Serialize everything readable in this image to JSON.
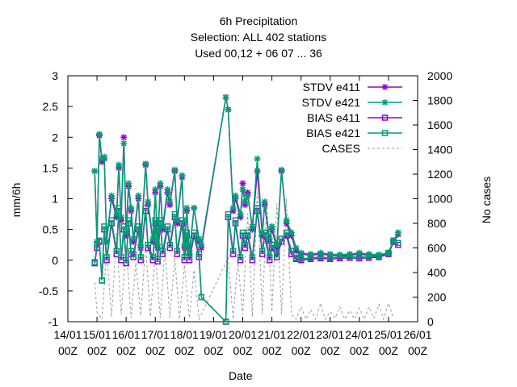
{
  "chart_data": {
    "type": "line",
    "title_lines": [
      "6h Precipitation",
      "Selection: ALL     402 stations",
      "Used  00,12  + 06 07 ... 36"
    ],
    "xlabel": "Date",
    "ylabel": "mm/6h",
    "y2label": "No cases",
    "ylim": [
      -1,
      3
    ],
    "y2lim": [
      0,
      2000
    ],
    "yticks": [
      -1,
      -0.5,
      0,
      0.5,
      1,
      1.5,
      2,
      2.5,
      3
    ],
    "ytick_labels": [
      "-1",
      "-0.5",
      "0",
      "0.5",
      "1",
      "1.5",
      "2",
      "2.5",
      "3"
    ],
    "y2ticks": [
      0,
      200,
      400,
      600,
      800,
      1000,
      1200,
      1400,
      1600,
      1800,
      2000
    ],
    "y2tick_labels": [
      "0",
      "200",
      "400",
      "600",
      "800",
      "1000",
      "1200",
      "1400",
      "1600",
      "1800",
      "2000"
    ],
    "xlim": [
      14,
      26
    ],
    "xticks": [
      14,
      15,
      16,
      17,
      18,
      19,
      20,
      21,
      22,
      23,
      24,
      25,
      26
    ],
    "xtick_labels": [
      [
        "14/01",
        "00Z"
      ],
      [
        "15/01",
        "00Z"
      ],
      [
        "16/01",
        "00Z"
      ],
      [
        "17/01",
        "00Z"
      ],
      [
        "18/01",
        "00Z"
      ],
      [
        "19/01",
        "00Z"
      ],
      [
        "20/01",
        "00Z"
      ],
      [
        "21/01",
        "00Z"
      ],
      [
        "22/01",
        "00Z"
      ],
      [
        "23/01",
        "00Z"
      ],
      [
        "24/01",
        "00Z"
      ],
      [
        "25/01",
        "00Z"
      ],
      [
        "26/01",
        "00Z"
      ]
    ],
    "legend_position": "top-right",
    "series": [
      {
        "name": "STDV e411",
        "color": "#9400d3",
        "marker": "cross",
        "axis": "y1",
        "x": [
          14.92,
          15.0,
          15.08,
          15.17,
          15.25,
          15.33,
          15.5,
          15.67,
          15.75,
          15.83,
          15.92,
          16.0,
          16.08,
          16.17,
          16.25,
          16.42,
          16.5,
          16.67,
          16.75,
          16.92,
          17.0,
          17.08,
          17.17,
          17.25,
          17.42,
          17.5,
          17.67,
          17.75,
          17.92,
          18.0,
          18.08,
          18.17,
          18.33,
          18.5,
          18.58,
          19.42,
          19.5,
          19.67,
          19.75,
          19.92,
          20.0,
          20.08,
          20.17,
          20.33,
          20.5,
          20.67,
          20.75,
          20.92,
          21.0,
          21.17,
          21.33,
          21.5,
          21.67,
          21.83,
          22.0,
          22.33,
          22.67,
          23.0,
          23.33,
          23.67,
          24.0,
          24.33,
          24.67,
          25.0,
          25.17,
          25.33
        ],
        "y": [
          1.45,
          0.3,
          2.03,
          1.6,
          1.65,
          0.3,
          1.0,
          0.7,
          1.5,
          0.65,
          2.0,
          0.4,
          1.2,
          0.8,
          0.3,
          1.0,
          0.2,
          1.55,
          0.9,
          0.3,
          1.1,
          0.2,
          1.2,
          0.5,
          1.1,
          0.9,
          1.45,
          0.6,
          1.35,
          0.2,
          0.8,
          0.1,
          0.85,
          0.3,
          0.2,
          2.65,
          2.45,
          0.8,
          1.0,
          0.7,
          1.25,
          0.9,
          1.1,
          0.5,
          1.45,
          0.4,
          0.9,
          0.3,
          0.5,
          0.2,
          1.45,
          0.6,
          0.4,
          0.15,
          0.1,
          0.08,
          0.1,
          0.08,
          0.07,
          0.08,
          0.1,
          0.08,
          0.07,
          0.1,
          0.3,
          0.42
        ]
      },
      {
        "name": "STDV e421",
        "color": "#009e73",
        "marker": "cross",
        "axis": "y1",
        "x": [
          14.92,
          15.0,
          15.08,
          15.17,
          15.25,
          15.33,
          15.5,
          15.67,
          15.75,
          15.83,
          15.92,
          16.0,
          16.08,
          16.17,
          16.25,
          16.42,
          16.5,
          16.67,
          16.75,
          16.92,
          17.0,
          17.08,
          17.17,
          17.25,
          17.42,
          17.5,
          17.67,
          17.75,
          17.92,
          18.0,
          18.08,
          18.17,
          18.33,
          18.5,
          18.58,
          19.42,
          19.5,
          19.67,
          19.75,
          19.92,
          20.0,
          20.08,
          20.17,
          20.33,
          20.5,
          20.67,
          20.75,
          20.92,
          21.0,
          21.17,
          21.33,
          21.5,
          21.67,
          21.83,
          22.0,
          22.33,
          22.67,
          23.0,
          23.33,
          23.67,
          24.0,
          24.33,
          24.67,
          25.0,
          25.17,
          25.33
        ],
        "y": [
          1.45,
          0.3,
          2.05,
          1.65,
          1.68,
          0.3,
          1.05,
          0.75,
          1.55,
          0.7,
          1.9,
          0.45,
          1.25,
          0.85,
          0.35,
          1.05,
          0.25,
          1.57,
          0.95,
          0.35,
          1.15,
          0.25,
          1.25,
          0.55,
          1.15,
          0.95,
          1.47,
          0.65,
          1.38,
          0.25,
          0.85,
          0.15,
          0.85,
          0.35,
          0.25,
          2.65,
          2.45,
          0.85,
          1.05,
          0.75,
          1.15,
          0.95,
          1.05,
          0.55,
          1.65,
          0.45,
          0.95,
          0.35,
          0.55,
          0.25,
          1.47,
          0.65,
          0.45,
          0.2,
          0.12,
          0.1,
          0.12,
          0.1,
          0.09,
          0.1,
          0.12,
          0.1,
          0.09,
          0.12,
          0.32,
          0.45
        ]
      },
      {
        "name": "BIAS e411",
        "color": "#9400d3",
        "marker": "square",
        "axis": "y1",
        "x": [
          14.92,
          15.0,
          15.08,
          15.17,
          15.25,
          15.33,
          15.5,
          15.67,
          15.75,
          15.83,
          15.92,
          16.0,
          16.08,
          16.17,
          16.25,
          16.42,
          16.5,
          16.67,
          16.75,
          16.92,
          17.0,
          17.08,
          17.17,
          17.25,
          17.42,
          17.5,
          17.67,
          17.75,
          17.92,
          18.0,
          18.08,
          18.17,
          18.33,
          18.5,
          18.58,
          19.42,
          19.5,
          19.67,
          19.75,
          19.92,
          20.0,
          20.08,
          20.17,
          20.33,
          20.5,
          20.67,
          20.75,
          20.92,
          21.0,
          21.17,
          21.33,
          21.5,
          21.67,
          21.83,
          22.0,
          22.33,
          22.67,
          23.0,
          23.33,
          23.67,
          24.0,
          24.33,
          24.67,
          25.0,
          25.17,
          25.33
        ],
        "y": [
          -0.05,
          0.2,
          0.3,
          -0.33,
          0.5,
          0.0,
          0.6,
          0.1,
          0.8,
          0.0,
          0.5,
          -0.05,
          0.6,
          0.1,
          0.05,
          0.5,
          0.0,
          0.8,
          0.2,
          0.0,
          0.6,
          -0.02,
          0.6,
          0.1,
          0.5,
          0.2,
          0.7,
          0.1,
          0.6,
          0.0,
          0.4,
          0.0,
          0.4,
          0.05,
          -0.6,
          -1.0,
          0.7,
          0.1,
          0.6,
          0.0,
          0.4,
          0.2,
          0.4,
          0.0,
          0.8,
          0.1,
          0.4,
          0.0,
          0.2,
          0.05,
          0.3,
          0.4,
          0.1,
          0.02,
          0.0,
          0.02,
          0.03,
          0.02,
          0.03,
          0.04,
          0.03,
          0.04,
          0.05,
          0.1,
          0.3,
          0.25
        ]
      },
      {
        "name": "BIAS e421",
        "color": "#009e73",
        "marker": "square",
        "axis": "y1",
        "x": [
          14.92,
          15.0,
          15.08,
          15.17,
          15.25,
          15.33,
          15.5,
          15.67,
          15.75,
          15.83,
          15.92,
          16.0,
          16.08,
          16.17,
          16.25,
          16.42,
          16.5,
          16.67,
          16.75,
          16.92,
          17.0,
          17.08,
          17.17,
          17.25,
          17.42,
          17.5,
          17.67,
          17.75,
          17.92,
          18.0,
          18.08,
          18.17,
          18.33,
          18.5,
          18.58,
          19.42,
          19.5,
          19.67,
          19.75,
          19.92,
          20.0,
          20.08,
          20.17,
          20.33,
          20.5,
          20.67,
          20.75,
          20.92,
          21.0,
          21.17,
          21.33,
          21.5,
          21.67,
          21.83,
          22.0,
          22.33,
          22.67,
          23.0,
          23.33,
          23.67,
          24.0,
          24.33,
          24.67,
          25.0,
          25.17,
          25.33
        ],
        "y": [
          -0.03,
          0.25,
          0.32,
          -0.33,
          0.55,
          0.05,
          0.65,
          0.15,
          0.85,
          0.05,
          0.55,
          0.0,
          0.65,
          0.15,
          0.1,
          0.55,
          0.05,
          0.85,
          0.25,
          0.05,
          0.65,
          0.02,
          0.65,
          0.15,
          0.55,
          0.25,
          0.75,
          0.15,
          0.65,
          0.05,
          0.45,
          0.05,
          0.45,
          0.1,
          -0.6,
          -1.0,
          0.75,
          0.15,
          0.65,
          0.05,
          0.45,
          0.25,
          0.45,
          0.05,
          0.85,
          0.15,
          0.45,
          0.05,
          0.25,
          0.1,
          0.35,
          0.45,
          0.15,
          0.04,
          0.02,
          0.04,
          0.05,
          0.04,
          0.05,
          0.06,
          0.05,
          0.06,
          0.07,
          0.12,
          0.32,
          0.28
        ]
      },
      {
        "name": "CASES",
        "color": "#999999",
        "marker": "none",
        "dash": true,
        "axis": "y2",
        "x": [
          14.92,
          15.0,
          15.17,
          15.33,
          15.5,
          15.67,
          15.83,
          16.0,
          16.17,
          16.33,
          16.5,
          16.67,
          16.83,
          17.0,
          17.17,
          17.33,
          17.5,
          17.67,
          17.83,
          18.0,
          18.17,
          18.33,
          18.5,
          19.5,
          19.67,
          19.83,
          20.0,
          20.17,
          20.33,
          20.5,
          20.67,
          20.83,
          21.0,
          21.17,
          21.33,
          21.5,
          21.67,
          21.83,
          22.0,
          22.17,
          22.33,
          22.5,
          22.67,
          22.83,
          23.0,
          23.17,
          23.33,
          23.5,
          23.67,
          23.83,
          24.0,
          24.17,
          24.33,
          24.5,
          24.67,
          24.83,
          25.0,
          25.17
        ],
        "y": [
          320,
          80,
          20,
          580,
          40,
          720,
          60,
          620,
          30,
          480,
          50,
          630,
          40,
          560,
          30,
          600,
          30,
          520,
          20,
          460,
          30,
          420,
          20,
          520,
          20,
          500,
          60,
          880,
          40,
          1050,
          60,
          1000,
          80,
          960,
          60,
          1000,
          60,
          20,
          120,
          20,
          100,
          20,
          150,
          20,
          80,
          30,
          120,
          20,
          90,
          20,
          110,
          20,
          120,
          30,
          140,
          20,
          150,
          30
        ]
      }
    ]
  }
}
